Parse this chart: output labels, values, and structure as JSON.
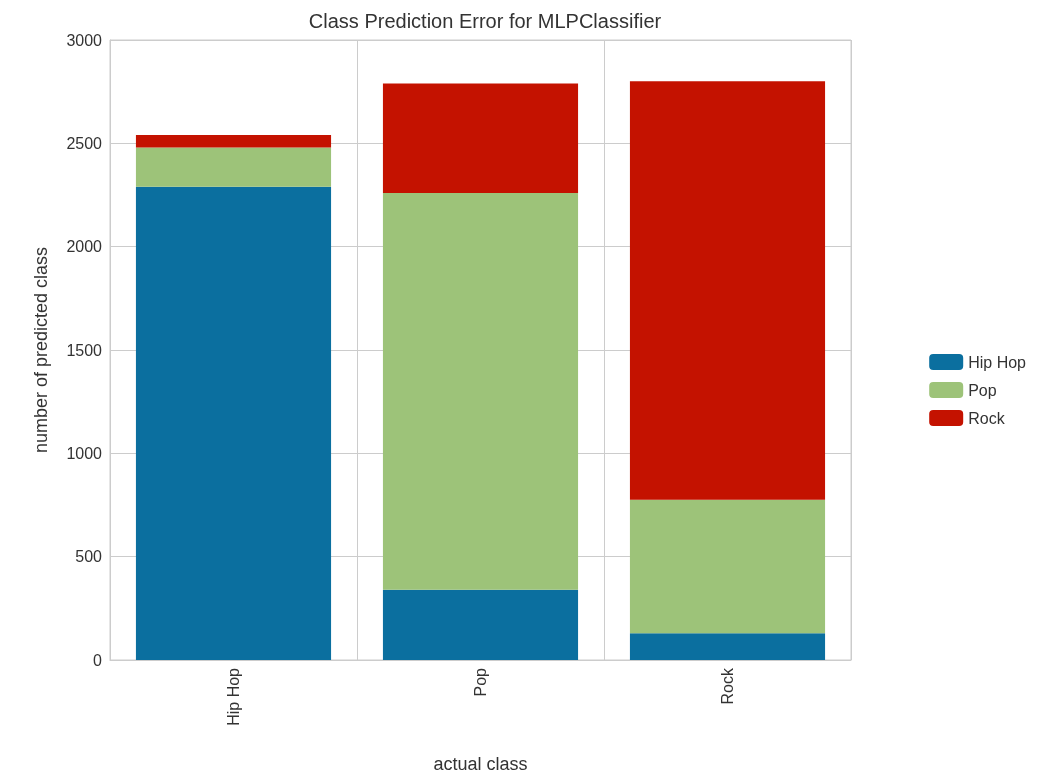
{
  "chart_data": {
    "type": "bar",
    "title": "Class Prediction Error for MLPClassifier",
    "xlabel": "actual class",
    "ylabel": "number of predicted class",
    "categories": [
      "Hip Hop",
      "Pop",
      "Rock"
    ],
    "series": [
      {
        "name": "Hip Hop",
        "color": "#0b6f9f",
        "values": [
          2290,
          340,
          130
        ]
      },
      {
        "name": "Pop",
        "color": "#9dc379",
        "values": [
          190,
          1920,
          645
        ]
      },
      {
        "name": "Rock",
        "color": "#c41200",
        "values": [
          60,
          530,
          2025
        ]
      }
    ],
    "stacked": true,
    "ylim": [
      0,
      3000
    ],
    "yticks": [
      0,
      500,
      1000,
      1500,
      2000,
      2500,
      3000
    ],
    "grid": true,
    "legend": "right"
  }
}
